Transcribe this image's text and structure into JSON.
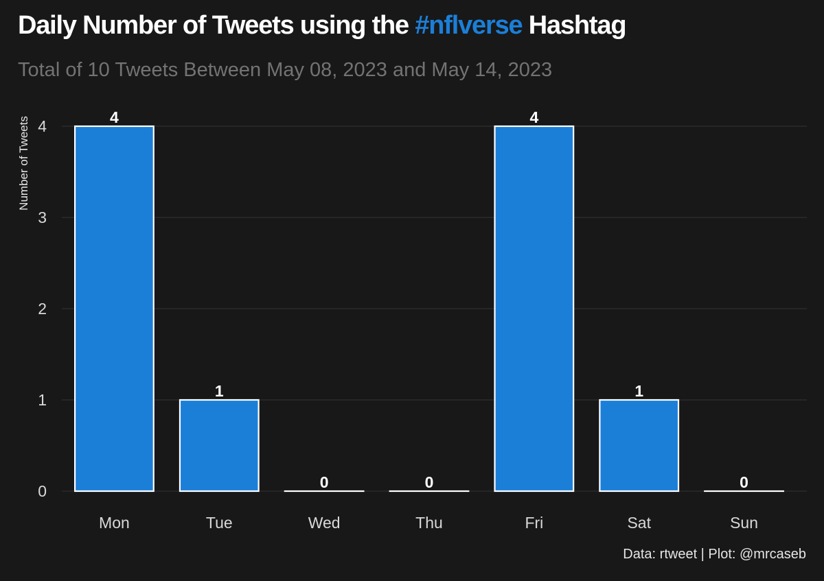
{
  "header": {
    "title_before": "Daily Number of Tweets using the ",
    "title_accent": "#nflverse",
    "title_after": " Hashtag",
    "subtitle": "Total of 10 Tweets Between May 08, 2023 and May 14, 2023"
  },
  "footer": {
    "caption": "Data: rtweet | Plot: @mrcaseb"
  },
  "colors": {
    "background": "#181818",
    "bar_fill": "#1b7fd8",
    "bar_outline": "#ffffff",
    "accent": "#1b7fd8",
    "gridline": "#2a2a2a"
  },
  "chart_data": {
    "type": "bar",
    "title": "Daily Number of Tweets using the #nflverse Hashtag",
    "subtitle": "Total of 10 Tweets Between May 08, 2023 and May 14, 2023",
    "xlabel": "",
    "ylabel": "Number of Tweets",
    "categories": [
      "Mon",
      "Tue",
      "Wed",
      "Thu",
      "Fri",
      "Sat",
      "Sun"
    ],
    "values": [
      4,
      1,
      0,
      0,
      4,
      1,
      0
    ],
    "data_labels": [
      "4",
      "1",
      "0",
      "0",
      "4",
      "1",
      "0"
    ],
    "ylim": [
      0,
      4
    ],
    "yticks": [
      0,
      1,
      2,
      3,
      4
    ],
    "grid": "horizontal",
    "legend": "none"
  }
}
